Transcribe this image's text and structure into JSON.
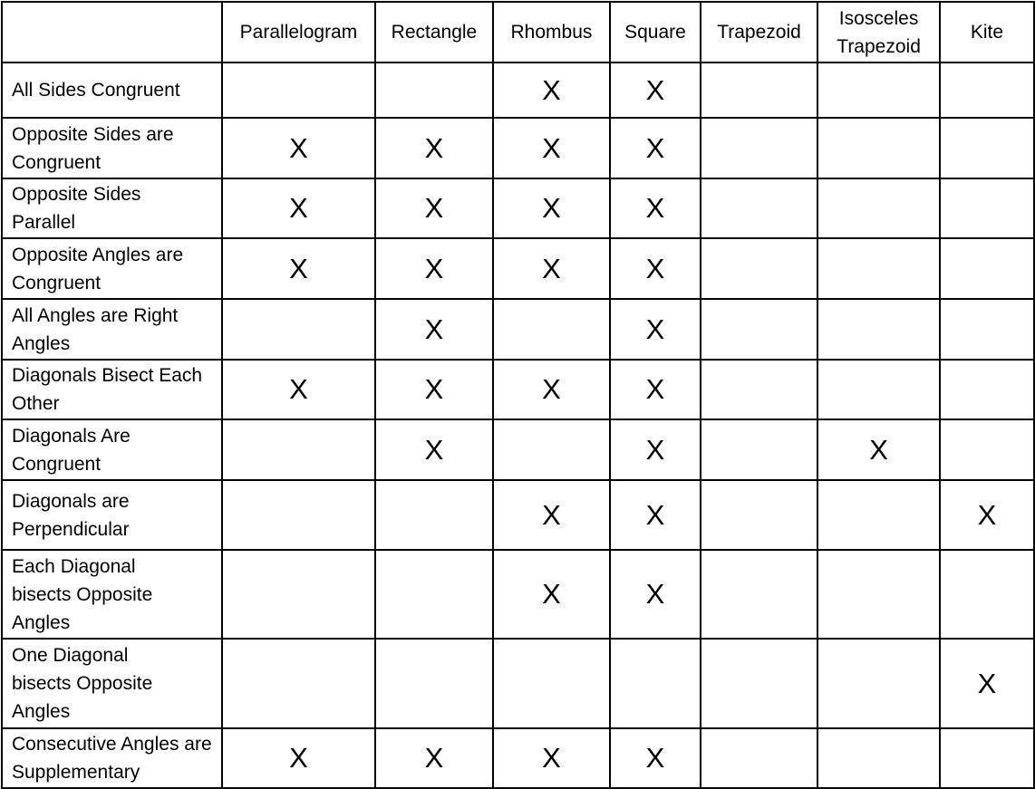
{
  "table": {
    "corner": "",
    "columns": [
      "Parallelogram",
      "Rectangle",
      "Rhombus",
      "Square",
      "Trapezoid",
      "Isosceles Trapezoid",
      "Kite"
    ],
    "mark_symbol": "X",
    "rows": [
      {
        "label": "All Sides Congruent",
        "marks": [
          "",
          "",
          "X",
          "X",
          "",
          "",
          ""
        ]
      },
      {
        "label": "Opposite Sides are Congruent",
        "marks": [
          "X",
          "X",
          "X",
          "X",
          "",
          "",
          ""
        ]
      },
      {
        "label": "Opposite Sides Parallel",
        "marks": [
          "X",
          "X",
          "X",
          "X",
          "",
          "",
          ""
        ]
      },
      {
        "label": "Opposite Angles are Congruent",
        "marks": [
          "X",
          "X",
          "X",
          "X",
          "",
          "",
          ""
        ]
      },
      {
        "label": "All Angles are Right Angles",
        "marks": [
          "",
          "X",
          "",
          "X",
          "",
          "",
          ""
        ]
      },
      {
        "label": "Diagonals Bisect Each Other",
        "marks": [
          "X",
          "X",
          "X",
          "X",
          "",
          "",
          ""
        ]
      },
      {
        "label": "Diagonals Are Congruent",
        "marks": [
          "",
          "X",
          "",
          "X",
          "",
          "X",
          ""
        ]
      },
      {
        "label": "Diagonals are Perpendicular",
        "marks": [
          "",
          "",
          "X",
          "X",
          "",
          "",
          "X"
        ]
      },
      {
        "label": "Each Diagonal bisects Opposite Angles",
        "marks": [
          "",
          "",
          "X",
          "X",
          "",
          "",
          ""
        ]
      },
      {
        "label": "One Diagonal bisects Opposite Angles",
        "marks": [
          "",
          "",
          "",
          "",
          "",
          "",
          "X"
        ]
      },
      {
        "label": "Consecutive Angles are Supplementary",
        "marks": [
          "X",
          "X",
          "X",
          "X",
          "",
          "",
          ""
        ]
      }
    ]
  }
}
